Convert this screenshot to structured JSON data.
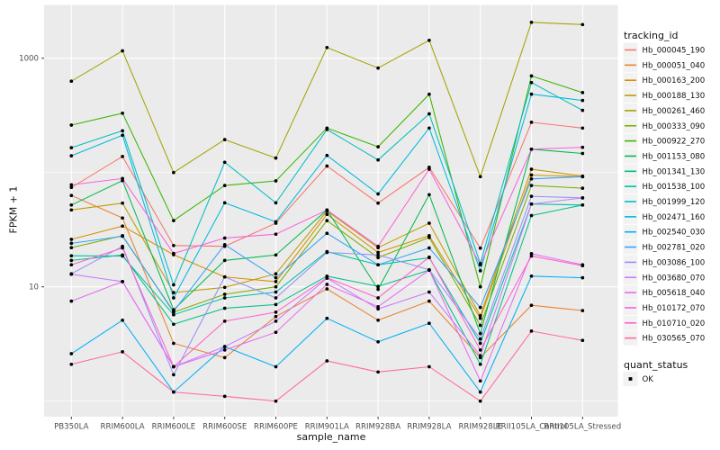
{
  "figure": {
    "ylabel": "FPKM + 1",
    "xlabel": "sample_name",
    "legend_title": "tracking_id",
    "quant_legend_title": "quant_status"
  },
  "chart_data": {
    "type": "line",
    "title": "",
    "xlabel": "sample_name",
    "ylabel": "FPKM + 1",
    "x_categories": [
      "PB350LA",
      "RRIM600LA",
      "RRIM600LE",
      "RRIM600SE",
      "RRIM600PE",
      "RRIM901LA",
      "RRIM928BA",
      "RRIM928LA",
      "RRIM928LE",
      "RRII105LA_Control",
      "RRII105LA_Stressed"
    ],
    "y_axis": {
      "scale": "log10",
      "ticks": [
        10,
        1000
      ],
      "tick_labels": [
        "10",
        "1000"
      ],
      "minor_gridlines": [
        1,
        100
      ],
      "range_approx": [
        0.7,
        3000
      ]
    },
    "grid": true,
    "panel_bg": "#EBEBEB",
    "gridline_color": "#FFFFFF",
    "point_color": "#000000",
    "legend_position": "right",
    "legend_title": "tracking_id",
    "quant_legend": {
      "title": "quant_status",
      "items": [
        "OK"
      ],
      "marker_color": "#000000"
    },
    "series": [
      {
        "name": "Hb_000045_190",
        "color": "#F8766D",
        "values": [
          74,
          138,
          23,
          22.6,
          36,
          114,
          54,
          111,
          21.8,
          275,
          245
        ]
      },
      {
        "name": "Hb_000051_040",
        "color": "#EA8331",
        "values": [
          63,
          40,
          3.2,
          2.4,
          5.5,
          9.6,
          5.1,
          7.5,
          2.4,
          6.9,
          6.2
        ]
      },
      {
        "name": "Hb_000163_200",
        "color": "#D89000",
        "values": [
          26,
          34,
          19.1,
          12.2,
          11.1,
          43,
          20,
          28,
          5.3,
          95,
          92
        ]
      },
      {
        "name": "Hb_000188_130",
        "color": "#C09B00",
        "values": [
          47,
          54,
          8.9,
          9.9,
          13,
          46,
          22,
          36,
          5.6,
          107,
          93
        ]
      },
      {
        "name": "Hb_000261_460",
        "color": "#A3A500",
        "values": [
          630,
          1160,
          100,
          194,
          134,
          1240,
          820,
          1435,
          92,
          2060,
          1970
        ]
      },
      {
        "name": "Hb_000333_090",
        "color": "#7CAE00",
        "values": [
          22,
          28,
          6.0,
          8.6,
          10,
          38,
          18,
          27,
          4.6,
          77,
          73
        ]
      },
      {
        "name": "Hb_000922_270",
        "color": "#39B600",
        "values": [
          260,
          330,
          38,
          77,
          84.5,
          245,
          168,
          484,
          10,
          700,
          500
        ]
      },
      {
        "name": "Hb_001153_080",
        "color": "#00BB4E",
        "values": [
          52,
          85,
          6.3,
          17,
          19,
          47,
          9.5,
          64,
          3.9,
          160,
          147
        ]
      },
      {
        "name": "Hb_001341_130",
        "color": "#00C087",
        "values": [
          17,
          19,
          4.7,
          6.5,
          7,
          12.4,
          10.1,
          14,
          2.1,
          42,
          52
        ]
      },
      {
        "name": "Hb_001538_100",
        "color": "#00C1A3",
        "values": [
          18.7,
          18.6,
          5.7,
          8,
          9,
          20.3,
          15.6,
          18,
          3.2,
          53,
          52
        ]
      },
      {
        "name": "Hb_001999_120",
        "color": "#00BFC4",
        "values": [
          165,
          232,
          10.4,
          123,
          54.3,
          238,
          129,
          326,
          16,
          613,
          350
        ]
      },
      {
        "name": "Hb_002471_160",
        "color": "#00BAE0",
        "values": [
          140,
          212,
          8.0,
          54.3,
          37,
          141,
          65,
          245,
          13.8,
          485,
          427
        ]
      },
      {
        "name": "Hb_002540_030",
        "color": "#00B0F6",
        "values": [
          2.6,
          5.1,
          1.2,
          3.0,
          2.0,
          5.3,
          3.3,
          4.8,
          1.2,
          12.4,
          12.0
        ]
      },
      {
        "name": "Hb_002781_020",
        "color": "#35A2FF",
        "values": [
          24,
          27.7,
          6.1,
          23.4,
          12,
          29.4,
          15.6,
          21.9,
          6.6,
          88,
          92
        ]
      },
      {
        "name": "Hb_003086_100",
        "color": "#9590FF",
        "values": [
          13,
          22.6,
          1.7,
          12.2,
          8,
          20,
          19,
          14.1,
          3.5,
          62,
          60
        ]
      },
      {
        "name": "Hb_003680_070",
        "color": "#C77CFF",
        "values": [
          12.9,
          11.1,
          2.0,
          3.0,
          5,
          11.9,
          6.4,
          9,
          2.5,
          53,
          60
        ]
      },
      {
        "name": "Hb_005618_040",
        "color": "#E76BF3",
        "values": [
          7.5,
          11.1,
          2.0,
          2.8,
          4,
          10.5,
          6.7,
          14,
          1.5,
          19.5,
          15.6
        ]
      },
      {
        "name": "Hb_010172_070",
        "color": "#FA62DB",
        "values": [
          78,
          88.5,
          19.6,
          26.7,
          28.9,
          47,
          22.6,
          107,
          15.6,
          160,
          166
        ]
      },
      {
        "name": "Hb_010710_020",
        "color": "#FF61CC",
        "values": [
          15.6,
          21.9,
          2.0,
          5,
          6,
          12,
          8,
          18.2,
          2.8,
          18.6,
          15.3
        ]
      },
      {
        "name": "Hb_030565_070",
        "color": "#FF67A4",
        "values": [
          2.1,
          2.7,
          1.2,
          1.1,
          1.0,
          2.25,
          1.8,
          2.0,
          1.0,
          4.1,
          3.4
        ]
      }
    ]
  }
}
